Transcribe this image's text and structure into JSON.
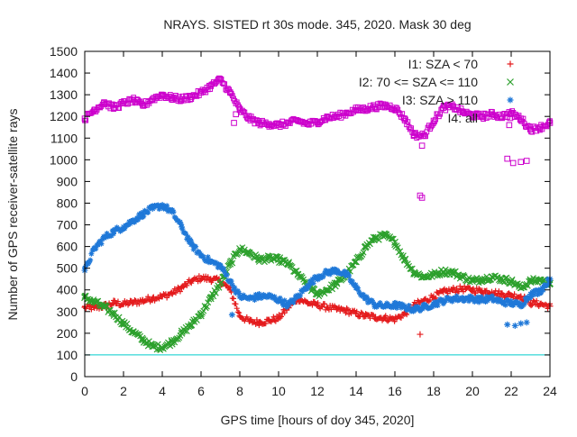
{
  "chart_data": {
    "type": "scatter",
    "title": "NRAYS. SISTED rt 30s mode. 345, 2020. Mask 30 deg",
    "xlabel": "GPS time [hours of doy 345, 2020]",
    "ylabel": "Number of GPS receiver-satellite rays",
    "xlim": [
      0,
      24
    ],
    "ylim": [
      0,
      1500
    ],
    "xticks": [
      "0",
      "2",
      "4",
      "6",
      "8",
      "10",
      "12",
      "14",
      "16",
      "18",
      "20",
      "22",
      "24"
    ],
    "yticks": [
      "0",
      "100",
      "200",
      "300",
      "400",
      "500",
      "600",
      "700",
      "800",
      "900",
      "1000",
      "1100",
      "1200",
      "1300",
      "1400",
      "1500"
    ],
    "reference_line": {
      "y": 100,
      "color": "#00cccc"
    },
    "legend_position": "top-right",
    "series": [
      {
        "name": "I1: SZA < 70",
        "color": "#e41a1c",
        "marker": "+",
        "x": [
          0,
          0.5,
          1,
          1.5,
          2,
          2.5,
          3,
          3.5,
          4,
          4.5,
          5,
          5.5,
          6,
          6.5,
          7,
          7.5,
          8,
          8.5,
          9,
          9.5,
          10,
          10.5,
          11,
          11.5,
          12,
          12.5,
          13,
          13.5,
          14,
          14.5,
          15,
          15.5,
          16,
          16.5,
          17,
          17.5,
          18,
          18.5,
          19,
          19.5,
          20,
          20.5,
          21,
          21.5,
          22,
          22.5,
          23,
          23.5,
          24
        ],
        "y": [
          320,
          318,
          325,
          340,
          335,
          342,
          350,
          362,
          370,
          385,
          410,
          440,
          455,
          450,
          440,
          400,
          280,
          255,
          250,
          258,
          270,
          320,
          360,
          340,
          330,
          320,
          310,
          305,
          290,
          280,
          275,
          270,
          265,
          290,
          330,
          350,
          370,
          390,
          400,
          405,
          400,
          395,
          390,
          380,
          375,
          370,
          340,
          335,
          325
        ],
        "outliers": [
          [
            17.3,
            195
          ]
        ]
      },
      {
        "name": "I2: 70 <= SZA <= 110",
        "color": "#2ca02c",
        "marker": "x",
        "x": [
          0,
          0.5,
          1,
          1.5,
          2,
          2.5,
          3,
          3.5,
          4,
          4.5,
          5,
          5.5,
          6,
          6.5,
          7,
          7.5,
          8,
          8.5,
          9,
          9.5,
          10,
          10.5,
          11,
          11.5,
          12,
          12.5,
          13,
          13.5,
          14,
          14.5,
          15,
          15.5,
          16,
          16.5,
          17,
          17.5,
          18,
          18.5,
          19,
          19.5,
          20,
          20.5,
          21,
          21.5,
          22,
          22.5,
          23,
          23.5,
          24
        ],
        "y": [
          365,
          345,
          320,
          290,
          245,
          205,
          170,
          140,
          135,
          160,
          200,
          240,
          290,
          360,
          430,
          520,
          590,
          570,
          540,
          545,
          540,
          520,
          470,
          420,
          380,
          400,
          430,
          470,
          530,
          600,
          640,
          650,
          620,
          540,
          480,
          460,
          470,
          485,
          480,
          460,
          440,
          450,
          460,
          450,
          440,
          410,
          440,
          445,
          430
        ]
      },
      {
        "name": "I3: SZA > 110",
        "color": "#1f78d8",
        "marker": "*",
        "x": [
          0,
          0.5,
          1,
          1.5,
          2,
          2.5,
          3,
          3.5,
          4,
          4.5,
          5,
          5.5,
          6,
          6.5,
          7,
          7.5,
          8,
          8.5,
          9,
          9.5,
          10,
          10.5,
          11,
          11.5,
          12,
          12.5,
          13,
          13.5,
          14,
          14.5,
          15,
          15.5,
          16,
          16.5,
          17,
          17.5,
          18,
          18.5,
          19,
          19.5,
          20,
          20.5,
          21,
          21.5,
          22,
          22.5,
          23,
          23.5,
          24
        ],
        "y": [
          490,
          590,
          640,
          670,
          690,
          720,
          750,
          775,
          790,
          760,
          690,
          610,
          560,
          530,
          510,
          440,
          370,
          360,
          370,
          370,
          355,
          330,
          370,
          420,
          460,
          480,
          490,
          470,
          410,
          360,
          330,
          325,
          330,
          320,
          310,
          320,
          335,
          350,
          360,
          360,
          360,
          355,
          360,
          345,
          340,
          330,
          380,
          395,
          450
        ],
        "outliers": [
          [
            7.6,
            285
          ],
          [
            21.8,
            240
          ],
          [
            22.2,
            235
          ],
          [
            22.5,
            245
          ],
          [
            22.8,
            250
          ]
        ]
      },
      {
        "name": "I4: all",
        "color": "#cc00cc",
        "marker": "square",
        "x": [
          0,
          0.5,
          1,
          1.5,
          2,
          2.5,
          3,
          3.5,
          4,
          4.5,
          5,
          5.5,
          6,
          6.5,
          7,
          7.5,
          8,
          8.5,
          9,
          9.5,
          10,
          10.5,
          11,
          11.5,
          12,
          12.5,
          13,
          13.5,
          14,
          14.5,
          15,
          15.5,
          16,
          16.5,
          17,
          17.5,
          18,
          18.5,
          19,
          19.5,
          20,
          20.5,
          21,
          21.5,
          22,
          22.5,
          23,
          23.5,
          24
        ],
        "y": [
          1190,
          1230,
          1265,
          1240,
          1260,
          1275,
          1250,
          1280,
          1300,
          1285,
          1280,
          1290,
          1310,
          1340,
          1370,
          1310,
          1230,
          1190,
          1170,
          1165,
          1160,
          1170,
          1180,
          1165,
          1175,
          1195,
          1200,
          1215,
          1230,
          1235,
          1245,
          1250,
          1240,
          1190,
          1115,
          1110,
          1180,
          1240,
          1245,
          1220,
          1205,
          1200,
          1210,
          1200,
          1215,
          1190,
          1140,
          1150,
          1170
        ],
        "outliers": [
          [
            7.7,
            1170
          ],
          [
            7.8,
            1210
          ],
          [
            17.3,
            835
          ],
          [
            17.4,
            825
          ],
          [
            17.4,
            1065
          ],
          [
            21.8,
            1005
          ],
          [
            22.1,
            985
          ],
          [
            22.5,
            990
          ],
          [
            22.8,
            995
          ],
          [
            21.9,
            1160
          ]
        ]
      }
    ],
    "legend_entries": [
      {
        "label": "I1: SZA < 70",
        "symbol": "+",
        "color": "#e41a1c"
      },
      {
        "label": "I2: 70 <= SZA <= 110",
        "symbol": "x",
        "color": "#2ca02c"
      },
      {
        "label": "I3: SZA > 110",
        "symbol": "*",
        "color": "#1f78d8"
      },
      {
        "label": "I4: all",
        "symbol": "square",
        "color": "#cc00cc"
      }
    ]
  }
}
